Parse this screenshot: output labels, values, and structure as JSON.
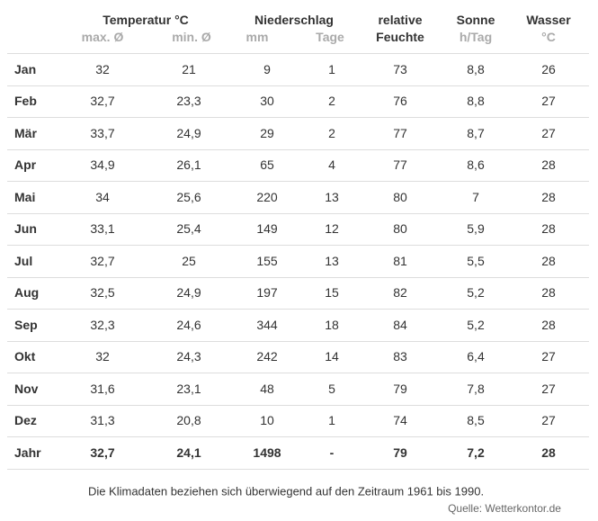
{
  "header": {
    "groups": [
      "Temperatur °C",
      "Niederschlag",
      "relative",
      "Sonne",
      "Wasser"
    ],
    "units": [
      "max. Ø",
      "min. Ø",
      "mm",
      "Tage",
      "Feuchte",
      "h/Tag",
      "°C"
    ]
  },
  "table": {
    "rows": [
      [
        "Jan",
        "32",
        "21",
        "9",
        "1",
        "73",
        "8,8",
        "26"
      ],
      [
        "Feb",
        "32,7",
        "23,3",
        "30",
        "2",
        "76",
        "8,8",
        "27"
      ],
      [
        "Mär",
        "33,7",
        "24,9",
        "29",
        "2",
        "77",
        "8,7",
        "27"
      ],
      [
        "Apr",
        "34,9",
        "26,1",
        "65",
        "4",
        "77",
        "8,6",
        "28"
      ],
      [
        "Mai",
        "34",
        "25,6",
        "220",
        "13",
        "80",
        "7",
        "28"
      ],
      [
        "Jun",
        "33,1",
        "25,4",
        "149",
        "12",
        "80",
        "5,9",
        "28"
      ],
      [
        "Jul",
        "32,7",
        "25",
        "155",
        "13",
        "81",
        "5,5",
        "28"
      ],
      [
        "Aug",
        "32,5",
        "24,9",
        "197",
        "15",
        "82",
        "5,2",
        "28"
      ],
      [
        "Sep",
        "32,3",
        "24,6",
        "344",
        "18",
        "84",
        "5,2",
        "28"
      ],
      [
        "Okt",
        "32",
        "24,3",
        "242",
        "14",
        "83",
        "6,4",
        "27"
      ],
      [
        "Nov",
        "31,6",
        "23,1",
        "48",
        "5",
        "79",
        "7,8",
        "27"
      ],
      [
        "Dez",
        "31,3",
        "20,8",
        "10",
        "1",
        "74",
        "8,5",
        "27"
      ],
      [
        "Jahr",
        "32,7",
        "24,1",
        "1498",
        "-",
        "79",
        "7,2",
        "28"
      ]
    ]
  },
  "footnote": "Die Klimadaten beziehen sich überwiegend auf den Zeitraum 1961 bis 1990.",
  "source": "Quelle: Wetterkontor.de"
}
